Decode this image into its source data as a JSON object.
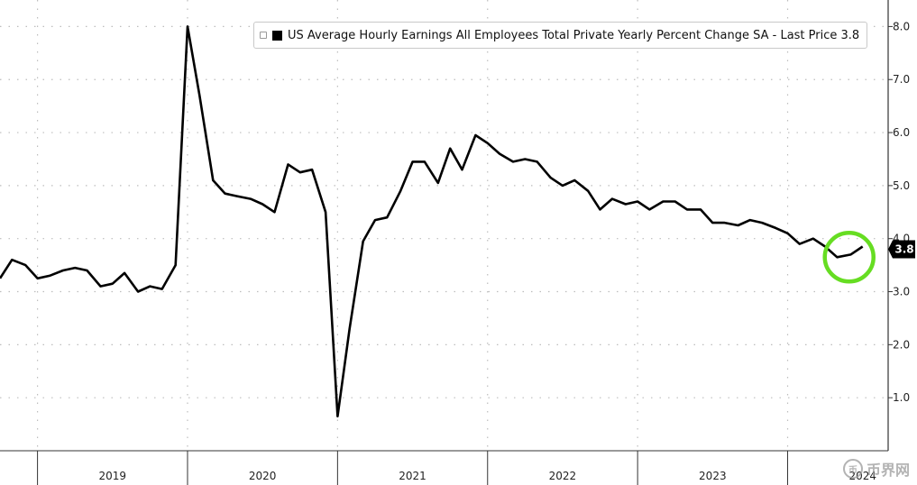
{
  "legend": {
    "text": "US Average Hourly Earnings All Employees Total Private Yearly Percent Change SA - Last Price 3.8"
  },
  "watermark": {
    "text": "币界网",
    "logo_text": "币"
  },
  "colors": {
    "line": "#000000",
    "highlight": "#66dd22",
    "grid": "#bdbdbd",
    "axis": "#333333"
  },
  "chart_data": {
    "type": "line",
    "x_unit": "year (decimal)",
    "xlim": [
      2018.75,
      2024.67
    ],
    "ylim": [
      0,
      8.5
    ],
    "y_ticks": [
      "1.0",
      "2.0",
      "3.0",
      "4.0",
      "5.0",
      "6.0",
      "7.0",
      "8.0"
    ],
    "year_labels": [
      "2019",
      "2020",
      "2021",
      "2022",
      "2023",
      "2024"
    ],
    "last_price": "3.8",
    "grid": "dotted",
    "legend_position": "top",
    "series": [
      {
        "name": "US Average Hourly Earnings All Employees Total Private Yearly Percent Change SA",
        "x": [
          2018.75,
          2018.83,
          2018.92,
          2019.0,
          2019.08,
          2019.17,
          2019.25,
          2019.33,
          2019.42,
          2019.5,
          2019.58,
          2019.67,
          2019.75,
          2019.83,
          2019.92,
          2020.0,
          2020.08,
          2020.17,
          2020.25,
          2020.33,
          2020.42,
          2020.5,
          2020.58,
          2020.67,
          2020.75,
          2020.83,
          2020.92,
          2021.0,
          2021.08,
          2021.17,
          2021.25,
          2021.33,
          2021.42,
          2021.5,
          2021.58,
          2021.67,
          2021.75,
          2021.83,
          2021.92,
          2022.0,
          2022.08,
          2022.17,
          2022.25,
          2022.33,
          2022.42,
          2022.5,
          2022.58,
          2022.67,
          2022.75,
          2022.83,
          2022.92,
          2023.0,
          2023.08,
          2023.17,
          2023.25,
          2023.33,
          2023.42,
          2023.5,
          2023.58,
          2023.67,
          2023.75,
          2023.83,
          2023.92,
          2024.0,
          2024.08,
          2024.17,
          2024.25,
          2024.33,
          2024.42,
          2024.5
        ],
        "values": [
          3.25,
          3.6,
          3.5,
          3.25,
          3.3,
          3.4,
          3.45,
          3.4,
          3.1,
          3.15,
          3.35,
          3.0,
          3.1,
          3.05,
          3.5,
          8.0,
          6.7,
          5.1,
          4.85,
          4.8,
          4.75,
          4.65,
          4.5,
          5.4,
          5.25,
          5.3,
          4.5,
          0.65,
          2.3,
          3.95,
          4.35,
          4.4,
          4.9,
          5.45,
          5.45,
          5.05,
          5.7,
          5.3,
          5.95,
          5.8,
          5.6,
          5.45,
          5.5,
          5.45,
          5.15,
          5.0,
          5.1,
          4.9,
          4.55,
          4.75,
          4.65,
          4.7,
          4.55,
          4.7,
          4.7,
          4.55,
          4.55,
          4.3,
          4.3,
          4.25,
          4.35,
          4.3,
          4.2,
          4.1,
          3.9,
          4.0,
          3.85,
          3.65,
          3.7,
          3.85
        ]
      }
    ]
  }
}
